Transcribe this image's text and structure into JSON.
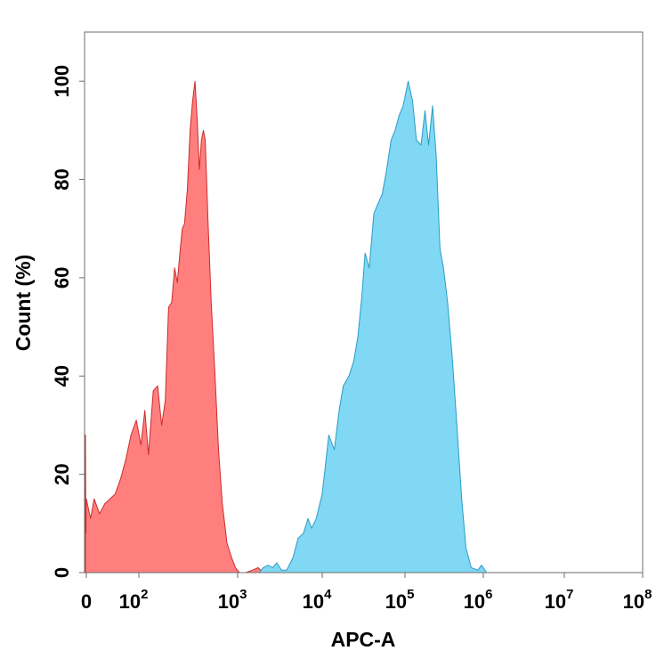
{
  "chart_data": {
    "type": "area",
    "title": "",
    "xlabel": "APC-A",
    "ylabel": "Count (%)",
    "x_scale": "biexponential",
    "xlim": [
      -50,
      100000000
    ],
    "ylim": [
      0,
      110
    ],
    "grid": false,
    "legend": "none",
    "x_ticks": [
      {
        "value": 0,
        "base": "0",
        "exp": ""
      },
      {
        "value": 100,
        "base": "10",
        "exp": "2"
      },
      {
        "value": 1000,
        "base": "10",
        "exp": "3"
      },
      {
        "value": 10000,
        "base": "10",
        "exp": "4"
      },
      {
        "value": 100000,
        "base": "10",
        "exp": "5"
      },
      {
        "value": 1000000,
        "base": "10",
        "exp": "6"
      },
      {
        "value": 10000000,
        "base": "10",
        "exp": "7"
      },
      {
        "value": 100000000,
        "base": "10",
        "exp": "8"
      }
    ],
    "y_ticks": [
      0,
      20,
      40,
      60,
      80,
      100
    ],
    "series": [
      {
        "color": "#ff7f7f",
        "stroke": "#cc2b2b",
        "points": [
          [
            -50,
            0
          ],
          [
            -50,
            28
          ],
          [
            -40,
            20
          ],
          [
            -30,
            10
          ],
          [
            -20,
            8
          ],
          [
            -10,
            15
          ],
          [
            0,
            15
          ],
          [
            8,
            11
          ],
          [
            15,
            15
          ],
          [
            25,
            12
          ],
          [
            35,
            14
          ],
          [
            45,
            15
          ],
          [
            55,
            16
          ],
          [
            65,
            19
          ],
          [
            75,
            23
          ],
          [
            85,
            28
          ],
          [
            95,
            31
          ],
          [
            105,
            26
          ],
          [
            115,
            33
          ],
          [
            125,
            24
          ],
          [
            140,
            37
          ],
          [
            155,
            38
          ],
          [
            170,
            30
          ],
          [
            185,
            35
          ],
          [
            200,
            54
          ],
          [
            215,
            55
          ],
          [
            230,
            62
          ],
          [
            245,
            59
          ],
          [
            260,
            65
          ],
          [
            275,
            70
          ],
          [
            290,
            71
          ],
          [
            310,
            78
          ],
          [
            330,
            90
          ],
          [
            350,
            96
          ],
          [
            370,
            100
          ],
          [
            390,
            92
          ],
          [
            410,
            82
          ],
          [
            430,
            88
          ],
          [
            450,
            90
          ],
          [
            470,
            88
          ],
          [
            500,
            72
          ],
          [
            540,
            55
          ],
          [
            590,
            40
          ],
          [
            640,
            25
          ],
          [
            700,
            14
          ],
          [
            780,
            6
          ],
          [
            870,
            3
          ],
          [
            950,
            1
          ],
          [
            1050,
            0
          ],
          [
            1250,
            0
          ],
          [
            1500,
            0.5
          ],
          [
            1750,
            1
          ],
          [
            2000,
            0
          ],
          [
            2300,
            0.6
          ],
          [
            2600,
            0
          ]
        ]
      },
      {
        "color": "#80d8f4",
        "stroke": "#2a9bc6",
        "points": [
          [
            1800,
            0
          ],
          [
            2000,
            1
          ],
          [
            2300,
            1.5
          ],
          [
            2600,
            1
          ],
          [
            2900,
            2
          ],
          [
            3300,
            0.5
          ],
          [
            3800,
            0.5
          ],
          [
            4500,
            3
          ],
          [
            5200,
            7
          ],
          [
            6000,
            8
          ],
          [
            6800,
            11
          ],
          [
            7500,
            9
          ],
          [
            8500,
            11
          ],
          [
            10000,
            16
          ],
          [
            12000,
            28
          ],
          [
            14000,
            25
          ],
          [
            16000,
            33
          ],
          [
            18000,
            38
          ],
          [
            21000,
            40
          ],
          [
            24000,
            43
          ],
          [
            27000,
            48
          ],
          [
            30000,
            56
          ],
          [
            33000,
            65
          ],
          [
            37000,
            62
          ],
          [
            42000,
            73
          ],
          [
            47000,
            75
          ],
          [
            53000,
            77
          ],
          [
            60000,
            82
          ],
          [
            68000,
            88
          ],
          [
            76000,
            90
          ],
          [
            85000,
            93
          ],
          [
            95000,
            95
          ],
          [
            110000,
            100
          ],
          [
            125000,
            96
          ],
          [
            140000,
            88
          ],
          [
            160000,
            87
          ],
          [
            180000,
            94
          ],
          [
            200000,
            87
          ],
          [
            225000,
            95
          ],
          [
            250000,
            85
          ],
          [
            280000,
            66
          ],
          [
            310000,
            62
          ],
          [
            350000,
            55
          ],
          [
            400000,
            44
          ],
          [
            460000,
            30
          ],
          [
            530000,
            15
          ],
          [
            600000,
            5
          ],
          [
            700000,
            1
          ],
          [
            850000,
            0.5
          ],
          [
            950000,
            1.5
          ],
          [
            1100000,
            0
          ],
          [
            1300000,
            0
          ]
        ]
      }
    ]
  }
}
